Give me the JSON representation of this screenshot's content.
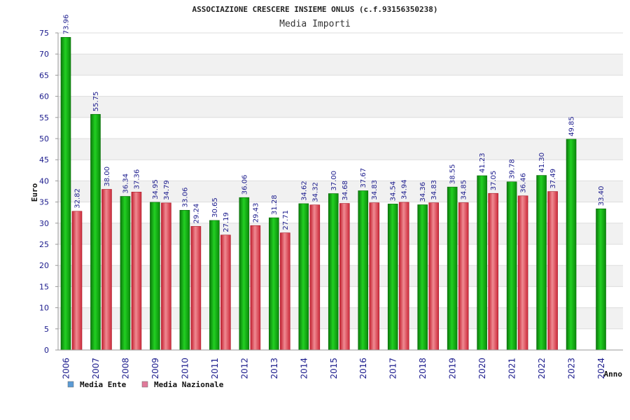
{
  "chart_data": {
    "type": "bar",
    "title": "ASSOCIAZIONE CRESCERE INSIEME ONLUS (c.f.93156350238)",
    "subtitle": "Media Importi",
    "ylabel": "Euro",
    "xlabel": "Anno",
    "ylim": [
      0,
      75
    ],
    "yticks": [
      0,
      5,
      10,
      15,
      20,
      25,
      30,
      35,
      40,
      45,
      50,
      55,
      60,
      65,
      70,
      75
    ],
    "grid": true,
    "legend_position": "bottom-left",
    "categories": [
      "2006",
      "2007",
      "2008",
      "2009",
      "2010",
      "2011",
      "2012",
      "2013",
      "2014",
      "2015",
      "2016",
      "2017",
      "2018",
      "2019",
      "2020",
      "2021",
      "2022",
      "2023",
      "2024"
    ],
    "series": [
      {
        "name": "Media Ente",
        "legend_color": "#5b9bd5",
        "bar_color": "#11aa11",
        "values": [
          73.96,
          55.75,
          36.34,
          34.95,
          33.06,
          30.65,
          36.06,
          31.28,
          34.62,
          37.0,
          37.67,
          34.54,
          34.36,
          38.55,
          41.23,
          39.78,
          41.3,
          49.85,
          33.4
        ],
        "labels": [
          "73.96",
          "55.75",
          "36.34",
          "34.95",
          "33.06",
          "30.65",
          "36.06",
          "31.28",
          "34.62",
          "37.00",
          "37.67",
          "34.54",
          "34.36",
          "38.55",
          "41.23",
          "39.78",
          "41.30",
          "49.85",
          "33.40"
        ]
      },
      {
        "name": "Media Nazionale",
        "legend_color": "#e07a9a",
        "bar_color": "#e43c4c",
        "values": [
          32.82,
          38.0,
          37.36,
          34.79,
          29.24,
          27.19,
          29.43,
          27.71,
          34.32,
          34.68,
          34.83,
          34.94,
          34.83,
          34.85,
          37.05,
          36.46,
          37.49,
          null,
          null
        ],
        "labels": [
          "32.82",
          "38.00",
          "37.36",
          "34.79",
          "29.24",
          "27.19",
          "29.43",
          "27.71",
          "34.32",
          "34.68",
          "34.83",
          "34.94",
          "34.83",
          "34.85",
          "37.05",
          "36.46",
          "37.49",
          null,
          null
        ]
      }
    ]
  }
}
